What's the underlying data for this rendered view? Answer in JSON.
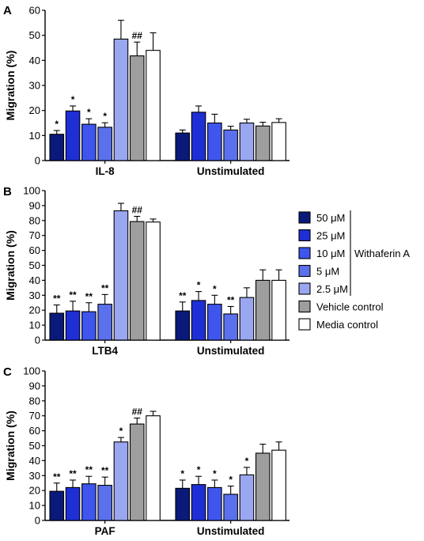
{
  "legend": {
    "items": [
      {
        "label": "50 μM",
        "color": "#0a1a7a"
      },
      {
        "label": "25 μM",
        "color": "#1e2fd6"
      },
      {
        "label": "10 μM",
        "color": "#3e56ee"
      },
      {
        "label": "5 μM",
        "color": "#5b70ec"
      },
      {
        "label": "2.5 μM",
        "color": "#9aa6ef"
      },
      {
        "label": "Vehicle control",
        "color": "#9e9e9e"
      },
      {
        "label": "Media control",
        "color": "#ffffff"
      }
    ],
    "group_label": "Withaferin  A"
  },
  "chart_data": [
    {
      "panel": "A",
      "type": "bar",
      "ylabel": "Migration (%)",
      "ylim": [
        0,
        60
      ],
      "yticks": [
        0,
        10,
        20,
        30,
        40,
        50,
        60
      ],
      "categories": [
        "IL-8",
        "Unstimulated"
      ],
      "groups": [
        {
          "values": [
            10.5,
            19.8,
            14.5,
            13.3,
            48.5,
            41.8,
            44.0
          ],
          "errors": [
            1.5,
            2.0,
            2.2,
            1.8,
            7.5,
            5.5,
            7.0
          ],
          "marks": [
            "*",
            "*",
            "*",
            "*",
            "",
            "##",
            ""
          ]
        },
        {
          "values": [
            11.0,
            19.3,
            15.0,
            12.2,
            15.0,
            13.8,
            15.2
          ],
          "errors": [
            1.2,
            2.5,
            3.5,
            1.5,
            1.5,
            1.5,
            1.5
          ],
          "marks": [
            "",
            "",
            "",
            "",
            "",
            "",
            ""
          ]
        }
      ]
    },
    {
      "panel": "B",
      "type": "bar",
      "ylabel": "Migration (%)",
      "ylim": [
        0,
        100
      ],
      "yticks": [
        0,
        10,
        20,
        30,
        40,
        50,
        60,
        70,
        80,
        90,
        100
      ],
      "categories": [
        "LTB4",
        "Unstimulated"
      ],
      "groups": [
        {
          "values": [
            18,
            19.5,
            19,
            24,
            86.5,
            79.3,
            79
          ],
          "errors": [
            5.5,
            6.5,
            6,
            6.5,
            5,
            3.5,
            2
          ],
          "marks": [
            "**",
            "**",
            "**",
            "**",
            "",
            "##",
            ""
          ]
        },
        {
          "values": [
            19.5,
            26.5,
            24,
            17.5,
            28.5,
            40,
            40
          ],
          "errors": [
            6,
            6,
            6,
            5,
            6.5,
            7,
            7
          ],
          "marks": [
            "**",
            "*",
            "*",
            "**",
            "",
            "",
            ""
          ]
        }
      ]
    },
    {
      "panel": "C",
      "type": "bar",
      "ylabel": "Migration (%)",
      "ylim": [
        0,
        100
      ],
      "yticks": [
        0,
        10,
        20,
        30,
        40,
        50,
        60,
        70,
        80,
        90,
        100
      ],
      "categories": [
        "PAF",
        "Unstimulated"
      ],
      "groups": [
        {
          "values": [
            19.5,
            22,
            24.5,
            23.5,
            52.5,
            64.5,
            70
          ],
          "errors": [
            5.5,
            5,
            5,
            5.5,
            3,
            4,
            3
          ],
          "marks": [
            "**",
            "**",
            "**",
            "**",
            "*",
            "##",
            ""
          ]
        },
        {
          "values": [
            21.5,
            24,
            22,
            17.5,
            30.5,
            45,
            47
          ],
          "errors": [
            5.5,
            5.5,
            5,
            5.5,
            5,
            6,
            5.5
          ],
          "marks": [
            "*",
            "*",
            "*",
            "*",
            "*",
            "",
            ""
          ]
        }
      ]
    }
  ]
}
